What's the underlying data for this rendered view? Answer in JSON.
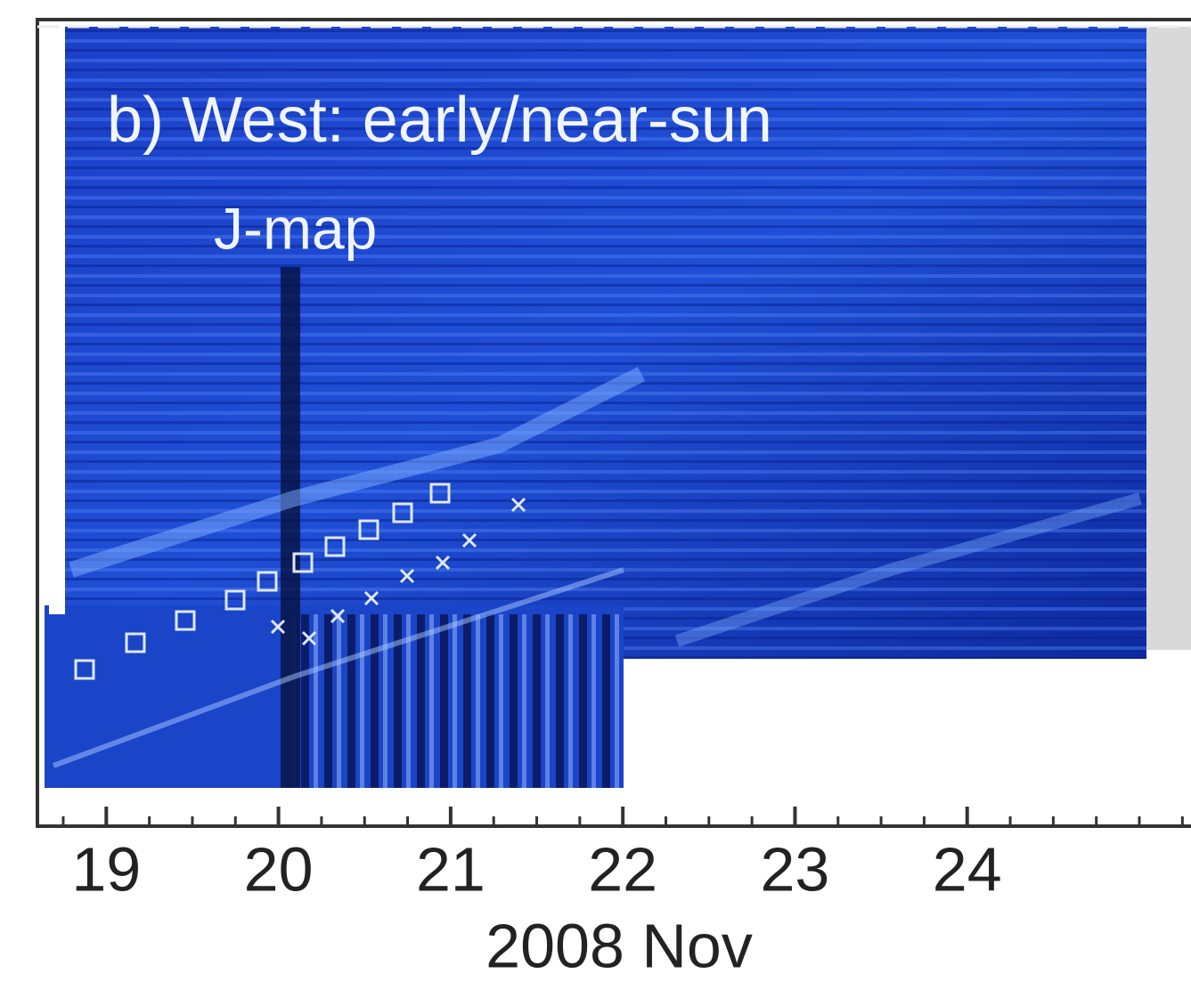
{
  "chart_data": {
    "type": "jmap",
    "title": "b) West: early/near-sun",
    "subtitle": "J-map",
    "xlabel": "2008 Nov",
    "xlim": [
      18.6,
      25.3
    ],
    "xticks": [
      19,
      20,
      21,
      22,
      23,
      24
    ]
  }
}
